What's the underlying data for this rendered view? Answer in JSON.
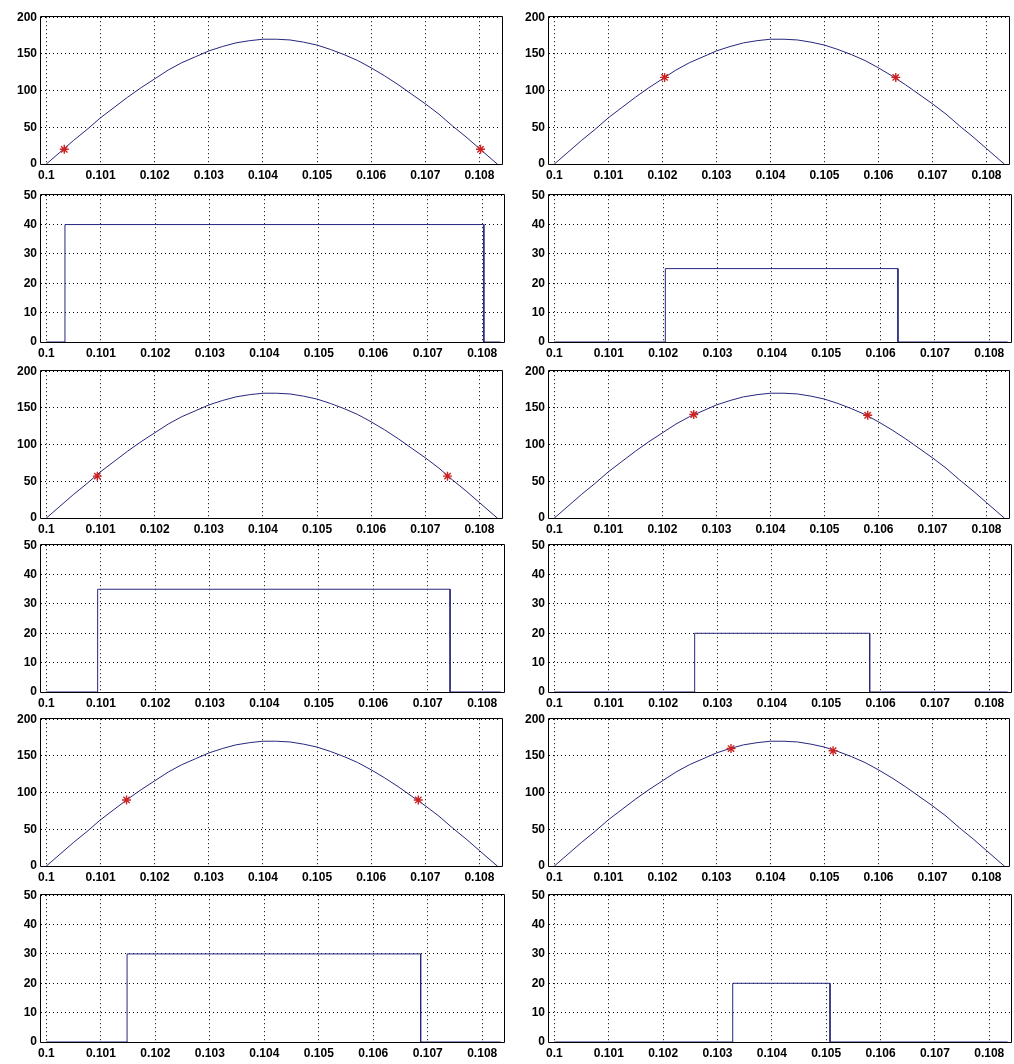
{
  "chart_data": [
    {
      "type": "line",
      "series": [
        {
          "color": "#27277f",
          "x": [
            0.1,
            0.10025,
            0.1005,
            0.10075,
            0.101,
            0.10125,
            0.1015,
            0.10175,
            0.102,
            0.10225,
            0.1025,
            0.10275,
            0.103,
            0.10325,
            0.1035,
            0.10375,
            0.104,
            0.10425,
            0.1045,
            0.10475,
            0.105,
            0.10525,
            0.1055,
            0.10575,
            0.106,
            0.10625,
            0.1065,
            0.10675,
            0.107,
            0.10725,
            0.1075,
            0.10775,
            0.108,
            0.10825,
            0.10833
          ],
          "values": [
            0,
            16,
            32,
            47,
            63,
            77,
            91,
            104,
            116,
            128,
            138,
            146,
            154,
            160,
            165,
            168,
            170,
            170,
            169,
            166,
            162,
            156,
            149,
            141,
            131,
            120,
            108,
            95,
            82,
            68,
            52,
            37,
            21,
            5,
            0
          ]
        },
        {
          "type": "scatter",
          "color": "#cc2222",
          "marker": "cross",
          "x": [
            0.10033,
            0.10802
          ],
          "values": [
            20,
            20
          ]
        }
      ],
      "xlim": [
        0.0999,
        0.1084
      ],
      "ylim": [
        0,
        200
      ],
      "xticks": [
        0.1,
        0.101,
        0.102,
        0.103,
        0.104,
        0.105,
        0.106,
        0.107,
        0.108
      ],
      "yticks": [
        0,
        50,
        100,
        150,
        200
      ],
      "grid": true
    },
    {
      "type": "line",
      "series": [
        {
          "color": "#27277f",
          "x": [
            0.1,
            0.10025,
            0.1005,
            0.10075,
            0.101,
            0.10125,
            0.1015,
            0.10175,
            0.102,
            0.10225,
            0.1025,
            0.10275,
            0.103,
            0.10325,
            0.1035,
            0.10375,
            0.104,
            0.10425,
            0.1045,
            0.10475,
            0.105,
            0.10525,
            0.1055,
            0.10575,
            0.106,
            0.10625,
            0.1065,
            0.10675,
            0.107,
            0.10725,
            0.1075,
            0.10775,
            0.108,
            0.10825,
            0.10833
          ],
          "values": [
            0,
            16,
            32,
            47,
            63,
            77,
            91,
            104,
            116,
            128,
            138,
            146,
            154,
            160,
            165,
            168,
            170,
            170,
            169,
            166,
            162,
            156,
            149,
            141,
            131,
            120,
            108,
            95,
            82,
            68,
            52,
            37,
            21,
            5,
            0
          ]
        },
        {
          "type": "scatter",
          "color": "#cc2222",
          "marker": "cross",
          "x": [
            0.10204,
            0.10632
          ],
          "values": [
            118,
            118
          ]
        }
      ],
      "xlim": [
        0.0999,
        0.1084
      ],
      "ylim": [
        0,
        200
      ],
      "xticks": [
        0.1,
        0.101,
        0.102,
        0.103,
        0.104,
        0.105,
        0.106,
        0.107,
        0.108
      ],
      "yticks": [
        0,
        50,
        100,
        150,
        200
      ],
      "grid": true
    },
    {
      "type": "line",
      "color": "#27277f",
      "x": [
        0.1,
        0.10034,
        0.10034,
        0.10803,
        0.10803,
        0.10833
      ],
      "values": [
        0,
        0,
        40,
        40,
        0,
        0
      ],
      "xlim": [
        0.0999,
        0.1084
      ],
      "ylim": [
        0,
        50
      ],
      "xticks": [
        0.1,
        0.101,
        0.102,
        0.103,
        0.104,
        0.105,
        0.106,
        0.107,
        0.108
      ],
      "yticks": [
        0,
        10,
        20,
        30,
        40,
        50
      ],
      "grid": true
    },
    {
      "type": "line",
      "color": "#27277f",
      "x": [
        0.1,
        0.10204,
        0.10204,
        0.10632,
        0.10632,
        0.10833
      ],
      "values": [
        0,
        0,
        25,
        25,
        0,
        0
      ],
      "xlim": [
        0.0999,
        0.1084
      ],
      "ylim": [
        0,
        50
      ],
      "xticks": [
        0.1,
        0.101,
        0.102,
        0.103,
        0.104,
        0.105,
        0.106,
        0.107,
        0.108
      ],
      "yticks": [
        0,
        10,
        20,
        30,
        40,
        50
      ],
      "grid": true
    },
    {
      "type": "line",
      "series": [
        {
          "color": "#27277f",
          "x": [
            0.1,
            0.10025,
            0.1005,
            0.10075,
            0.101,
            0.10125,
            0.1015,
            0.10175,
            0.102,
            0.10225,
            0.1025,
            0.10275,
            0.103,
            0.10325,
            0.1035,
            0.10375,
            0.104,
            0.10425,
            0.1045,
            0.10475,
            0.105,
            0.10525,
            0.1055,
            0.10575,
            0.106,
            0.10625,
            0.1065,
            0.10675,
            0.107,
            0.10725,
            0.1075,
            0.10775,
            0.108,
            0.10825,
            0.10833
          ],
          "values": [
            0,
            16,
            32,
            47,
            63,
            77,
            91,
            104,
            116,
            128,
            138,
            146,
            154,
            160,
            165,
            168,
            170,
            170,
            169,
            166,
            162,
            156,
            149,
            141,
            131,
            120,
            108,
            95,
            82,
            68,
            52,
            37,
            21,
            5,
            0
          ]
        },
        {
          "type": "scatter",
          "color": "#cc2222",
          "marker": "cross",
          "x": [
            0.10094,
            0.10741
          ],
          "values": [
            57,
            57
          ]
        }
      ],
      "xlim": [
        0.0999,
        0.1084
      ],
      "ylim": [
        0,
        200
      ],
      "xticks": [
        0.1,
        0.101,
        0.102,
        0.103,
        0.104,
        0.105,
        0.106,
        0.107,
        0.108
      ],
      "yticks": [
        0,
        50,
        100,
        150,
        200
      ],
      "grid": true
    },
    {
      "type": "line",
      "series": [
        {
          "color": "#27277f",
          "x": [
            0.1,
            0.10025,
            0.1005,
            0.10075,
            0.101,
            0.10125,
            0.1015,
            0.10175,
            0.102,
            0.10225,
            0.1025,
            0.10275,
            0.103,
            0.10325,
            0.1035,
            0.10375,
            0.104,
            0.10425,
            0.1045,
            0.10475,
            0.105,
            0.10525,
            0.1055,
            0.10575,
            0.106,
            0.10625,
            0.1065,
            0.10675,
            0.107,
            0.10725,
            0.1075,
            0.10775,
            0.108,
            0.10825,
            0.10833
          ],
          "values": [
            0,
            16,
            32,
            47,
            63,
            77,
            91,
            104,
            116,
            128,
            138,
            146,
            154,
            160,
            165,
            168,
            170,
            170,
            169,
            166,
            162,
            156,
            149,
            141,
            131,
            120,
            108,
            95,
            82,
            68,
            52,
            37,
            21,
            5,
            0
          ]
        },
        {
          "type": "scatter",
          "color": "#cc2222",
          "marker": "cross",
          "x": [
            0.10258,
            0.1058
          ],
          "values": [
            141,
            140
          ]
        }
      ],
      "xlim": [
        0.0999,
        0.1084
      ],
      "ylim": [
        0,
        200
      ],
      "xticks": [
        0.1,
        0.101,
        0.102,
        0.103,
        0.104,
        0.105,
        0.106,
        0.107,
        0.108
      ],
      "yticks": [
        0,
        50,
        100,
        150,
        200
      ],
      "grid": true
    },
    {
      "type": "line",
      "color": "#27277f",
      "x": [
        0.1,
        0.10094,
        0.10094,
        0.10741,
        0.10741,
        0.10833
      ],
      "values": [
        0,
        0,
        35,
        35,
        0,
        0
      ],
      "xlim": [
        0.0999,
        0.1084
      ],
      "ylim": [
        0,
        50
      ],
      "xticks": [
        0.1,
        0.101,
        0.102,
        0.103,
        0.104,
        0.105,
        0.106,
        0.107,
        0.108
      ],
      "yticks": [
        0,
        10,
        20,
        30,
        40,
        50
      ],
      "grid": true
    },
    {
      "type": "line",
      "color": "#27277f",
      "x": [
        0.1,
        0.10258,
        0.10258,
        0.1058,
        0.1058,
        0.10833
      ],
      "values": [
        0,
        0,
        20,
        20,
        0,
        0
      ],
      "xlim": [
        0.0999,
        0.1084
      ],
      "ylim": [
        0,
        50
      ],
      "xticks": [
        0.1,
        0.101,
        0.102,
        0.103,
        0.104,
        0.105,
        0.106,
        0.107,
        0.108
      ],
      "yticks": [
        0,
        10,
        20,
        30,
        40,
        50
      ],
      "grid": true
    },
    {
      "type": "line",
      "series": [
        {
          "color": "#27277f",
          "x": [
            0.1,
            0.10025,
            0.1005,
            0.10075,
            0.101,
            0.10125,
            0.1015,
            0.10175,
            0.102,
            0.10225,
            0.1025,
            0.10275,
            0.103,
            0.10325,
            0.1035,
            0.10375,
            0.104,
            0.10425,
            0.1045,
            0.10475,
            0.105,
            0.10525,
            0.1055,
            0.10575,
            0.106,
            0.10625,
            0.1065,
            0.10675,
            0.107,
            0.10725,
            0.1075,
            0.10775,
            0.108,
            0.10825,
            0.10833
          ],
          "values": [
            0,
            16,
            32,
            47,
            63,
            77,
            91,
            104,
            116,
            128,
            138,
            146,
            154,
            160,
            165,
            168,
            170,
            170,
            169,
            166,
            162,
            156,
            149,
            141,
            131,
            120,
            108,
            95,
            82,
            68,
            52,
            37,
            21,
            5,
            0
          ]
        },
        {
          "type": "scatter",
          "color": "#cc2222",
          "marker": "cross",
          "x": [
            0.10148,
            0.10687
          ],
          "values": [
            90,
            90
          ]
        }
      ],
      "xlim": [
        0.0999,
        0.1084
      ],
      "ylim": [
        0,
        200
      ],
      "xticks": [
        0.1,
        0.101,
        0.102,
        0.103,
        0.104,
        0.105,
        0.106,
        0.107,
        0.108
      ],
      "yticks": [
        0,
        50,
        100,
        150,
        200
      ],
      "grid": true
    },
    {
      "type": "line",
      "series": [
        {
          "color": "#27277f",
          "x": [
            0.1,
            0.10025,
            0.1005,
            0.10075,
            0.101,
            0.10125,
            0.1015,
            0.10175,
            0.102,
            0.10225,
            0.1025,
            0.10275,
            0.103,
            0.10325,
            0.1035,
            0.10375,
            0.104,
            0.10425,
            0.1045,
            0.10475,
            0.105,
            0.10525,
            0.1055,
            0.10575,
            0.106,
            0.10625,
            0.1065,
            0.10675,
            0.107,
            0.10725,
            0.1075,
            0.10775,
            0.108,
            0.10825,
            0.10833
          ],
          "values": [
            0,
            16,
            32,
            47,
            63,
            77,
            91,
            104,
            116,
            128,
            138,
            146,
            154,
            160,
            165,
            168,
            170,
            170,
            169,
            166,
            162,
            156,
            149,
            141,
            131,
            120,
            108,
            95,
            82,
            68,
            52,
            37,
            21,
            5,
            0
          ]
        },
        {
          "type": "scatter",
          "color": "#cc2222",
          "marker": "cross",
          "x": [
            0.10327,
            0.10516
          ],
          "values": [
            160,
            157
          ]
        }
      ],
      "xlim": [
        0.0999,
        0.1084
      ],
      "ylim": [
        0,
        200
      ],
      "xticks": [
        0.1,
        0.101,
        0.102,
        0.103,
        0.104,
        0.105,
        0.106,
        0.107,
        0.108
      ],
      "yticks": [
        0,
        50,
        100,
        150,
        200
      ],
      "grid": true
    },
    {
      "type": "line",
      "color": "#27277f",
      "x": [
        0.1,
        0.10148,
        0.10148,
        0.10687,
        0.10687,
        0.10833
      ],
      "values": [
        0,
        0,
        30,
        30,
        0,
        0
      ],
      "xlim": [
        0.0999,
        0.1084
      ],
      "ylim": [
        0,
        50
      ],
      "xticks": [
        0.1,
        0.101,
        0.102,
        0.103,
        0.104,
        0.105,
        0.106,
        0.107,
        0.108
      ],
      "yticks": [
        0,
        10,
        20,
        30,
        40,
        50
      ],
      "grid": true
    },
    {
      "type": "line",
      "color": "#27277f",
      "x": [
        0.1,
        0.10328,
        0.10328,
        0.10507,
        0.10507,
        0.10833
      ],
      "values": [
        0,
        0,
        20,
        20,
        0,
        0
      ],
      "xlim": [
        0.0999,
        0.1084
      ],
      "ylim": [
        0,
        50
      ],
      "xticks": [
        0.1,
        0.101,
        0.102,
        0.103,
        0.104,
        0.105,
        0.106,
        0.107,
        0.108
      ],
      "yticks": [
        0,
        10,
        20,
        30,
        40,
        50
      ],
      "grid": true
    }
  ]
}
